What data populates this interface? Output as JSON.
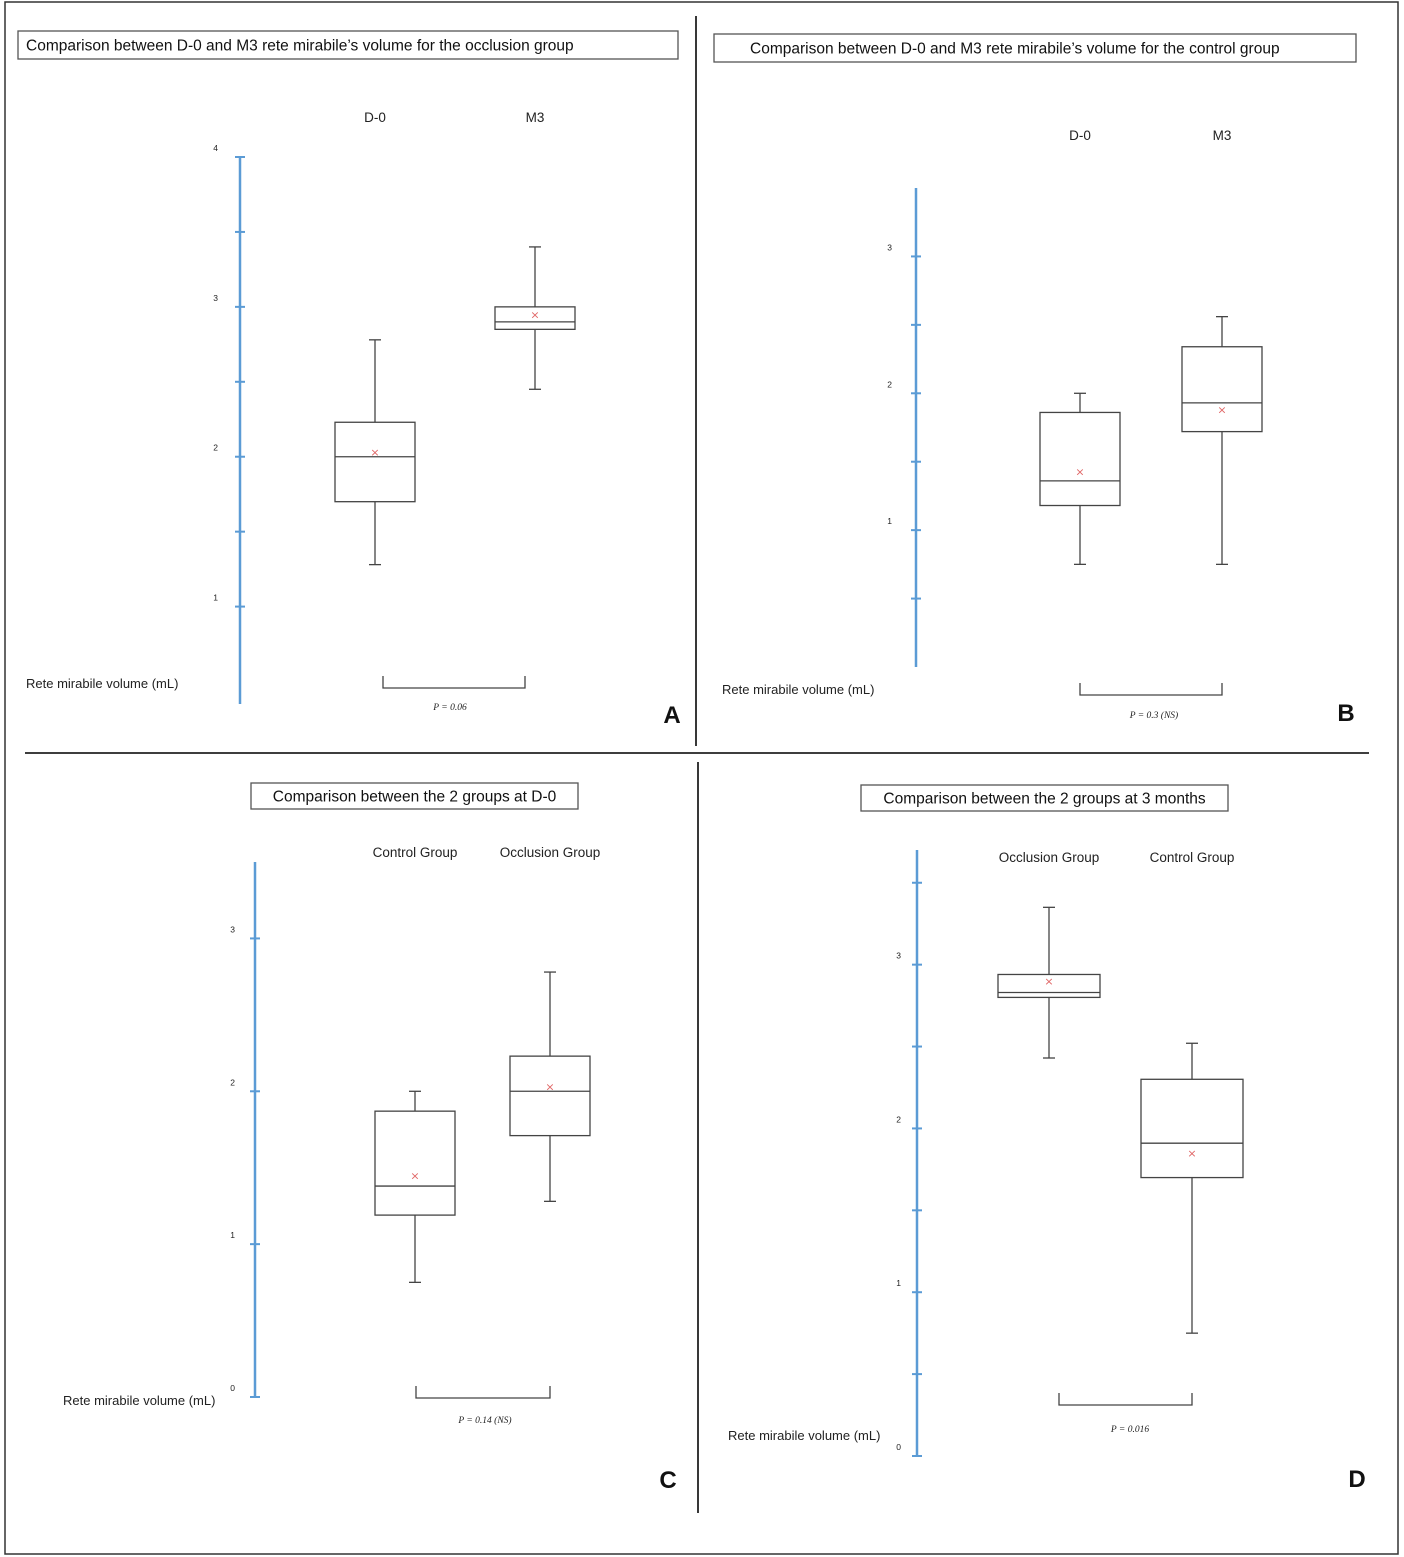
{
  "chart_data": [
    {
      "type": "box",
      "panel": "A",
      "title": "Comparison between D-0 and M3 rete mirabile’s volume for the occlusion group",
      "ylabel": "Rete mirabile volume (mL)",
      "categories": [
        "D-0",
        "M3"
      ],
      "ylim": [
        0.35,
        4.0
      ],
      "tick_values": [
        1,
        1.5,
        2,
        2.5,
        3,
        3.5,
        4
      ],
      "tick_labels": [
        {
          "value": 1,
          "label": "1"
        },
        {
          "value": 2,
          "label": "2"
        },
        {
          "value": 3,
          "label": "3"
        },
        {
          "value": 4,
          "label": "4"
        }
      ],
      "boxes": [
        {
          "category": "D-0",
          "min": 1.28,
          "q1": 1.7,
          "median": 2.0,
          "q3": 2.23,
          "max": 2.78,
          "mean": 2.03
        },
        {
          "category": "M3",
          "min": 2.45,
          "q1": 2.85,
          "median": 2.9,
          "q3": 3.0,
          "max": 3.4,
          "mean": 2.95
        }
      ],
      "p_value": "P = 0.06"
    },
    {
      "type": "box",
      "panel": "B",
      "title": "Comparison between D-0 and M3 rete mirabile’s volume for the control group",
      "ylabel": "Rete mirabile volume (mL)",
      "categories": [
        "D-0",
        "M3"
      ],
      "ylim": [
        0.0,
        3.5
      ],
      "tick_values": [
        0.5,
        1,
        1.5,
        2,
        2.5,
        3
      ],
      "tick_labels": [
        {
          "value": 1,
          "label": "1"
        },
        {
          "value": 2,
          "label": "2"
        },
        {
          "value": 3,
          "label": "3"
        }
      ],
      "boxes": [
        {
          "category": "D-0",
          "min": 0.75,
          "q1": 1.18,
          "median": 1.36,
          "q3": 1.86,
          "max": 2.0,
          "mean": 1.43
        },
        {
          "category": "M3",
          "min": 0.75,
          "q1": 1.72,
          "median": 1.93,
          "q3": 2.34,
          "max": 2.56,
          "mean": 1.88
        }
      ],
      "p_value": "P = 0.3 (NS)"
    },
    {
      "type": "box",
      "panel": "C",
      "title": "Comparison between the 2 groups at D-0",
      "ylabel": "Rete mirabile volume (mL)",
      "categories": [
        "Control Group",
        "Occlusion Group"
      ],
      "ylim": [
        0.0,
        3.5
      ],
      "tick_values": [
        0,
        1,
        2,
        3
      ],
      "tick_labels": [
        {
          "value": 0,
          "label": "0"
        },
        {
          "value": 1,
          "label": "1"
        },
        {
          "value": 2,
          "label": "2"
        },
        {
          "value": 3,
          "label": "3"
        }
      ],
      "boxes": [
        {
          "category": "Control Group",
          "min": 0.75,
          "q1": 1.19,
          "median": 1.38,
          "q3": 1.87,
          "max": 2.0,
          "mean": 1.45
        },
        {
          "category": "Occlusion Group",
          "min": 1.28,
          "q1": 1.71,
          "median": 2.0,
          "q3": 2.23,
          "max": 2.78,
          "mean": 2.03
        }
      ],
      "p_value": "P = 0.14 (NS)"
    },
    {
      "type": "box",
      "panel": "D",
      "title": "Comparison between the 2 groups at 3 months",
      "ylabel": "Rete mirabile volume (mL)",
      "categories": [
        "Occlusion Group",
        "Control Group"
      ],
      "ylim": [
        0.0,
        3.7
      ],
      "tick_values": [
        0,
        0.5,
        1,
        1.5,
        2,
        2.5,
        3,
        3.5
      ],
      "tick_labels": [
        {
          "value": 0,
          "label": "0"
        },
        {
          "value": 1,
          "label": "1"
        },
        {
          "value": 2,
          "label": "2"
        },
        {
          "value": 3,
          "label": "3"
        }
      ],
      "boxes": [
        {
          "category": "Occlusion Group",
          "min": 2.43,
          "q1": 2.8,
          "median": 2.83,
          "q3": 2.94,
          "max": 3.35,
          "mean": 2.9
        },
        {
          "category": "Control Group",
          "min": 0.75,
          "q1": 1.7,
          "median": 1.91,
          "q3": 2.3,
          "max": 2.52,
          "mean": 1.85
        }
      ],
      "p_value": "P = 0.016"
    }
  ]
}
